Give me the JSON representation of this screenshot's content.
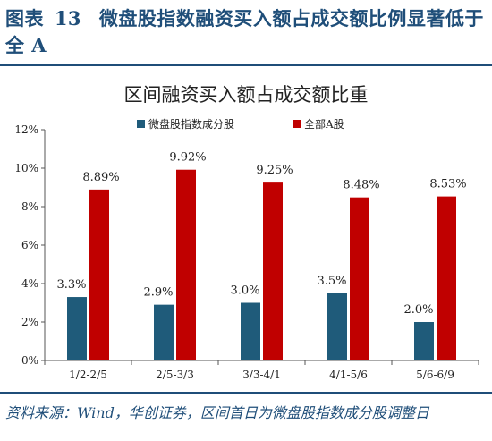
{
  "figure": {
    "title_prefix": "图表",
    "title_number": "13",
    "title_text": "微盘股指数融资买入额占成交额比例显著低于全 A",
    "source": "资料来源：Wind，华创证券，区间首日为微盘股指数成分股调整日"
  },
  "chart_data": {
    "type": "bar",
    "title": "区间融资买入额占成交额比重",
    "categories": [
      "1/2-2/5",
      "2/5-3/3",
      "3/3-4/1",
      "4/1-5/6",
      "5/6-6/9"
    ],
    "series": [
      {
        "name": "微盘股指数成分股",
        "color": "#1f5b7a",
        "values": [
          3.3,
          2.9,
          3.0,
          3.5,
          2.0
        ],
        "labels": [
          "3.3%",
          "2.9%",
          "3.0%",
          "3.5%",
          "2.0%"
        ]
      },
      {
        "name": "全部A股",
        "color": "#c00000",
        "values": [
          8.89,
          9.92,
          9.25,
          8.48,
          8.53
        ],
        "labels": [
          "8.89%",
          "9.92%",
          "9.25%",
          "8.48%",
          "8.53%"
        ]
      }
    ],
    "yticks": [
      "0%",
      "2%",
      "4%",
      "6%",
      "8%",
      "10%",
      "12%"
    ],
    "ylim": [
      0,
      12
    ],
    "legend": "top",
    "grid": false
  }
}
